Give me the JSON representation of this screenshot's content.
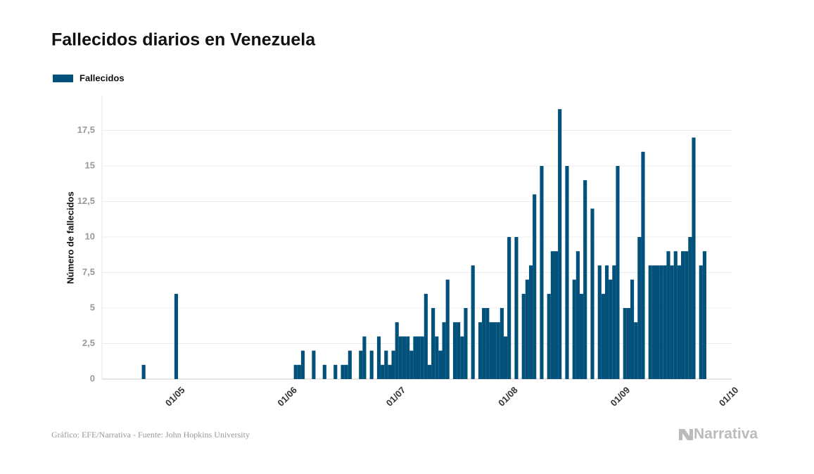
{
  "chart_data": {
    "type": "bar",
    "title": "Fallecidos diarios en Venezuela",
    "ylabel": "Número de fallecidos",
    "source": "Gráfico: EFE/Narrativa - Fuente: John Hopkins University",
    "brand": "Narrativa",
    "legend": "top-left",
    "grid": true,
    "series": [
      {
        "name": "Fallecidos",
        "color": "#02517a",
        "values": [
          0,
          0,
          0,
          0,
          0,
          0,
          0,
          0,
          0,
          0,
          0,
          1,
          0,
          0,
          0,
          0,
          0,
          0,
          0,
          0,
          6,
          0,
          0,
          0,
          0,
          0,
          0,
          0,
          0,
          0,
          0,
          0,
          0,
          0,
          0,
          0,
          0,
          0,
          0,
          0,
          0,
          0,
          0,
          0,
          0,
          0,
          0,
          0,
          0,
          0,
          0,
          0,
          0,
          1,
          1,
          2,
          0,
          0,
          2,
          0,
          0,
          1,
          0,
          0,
          1,
          0,
          1,
          1,
          2,
          0,
          0,
          2,
          3,
          0,
          2,
          0,
          3,
          1,
          2,
          1,
          2,
          4,
          3,
          3,
          3,
          2,
          3,
          3,
          3,
          6,
          1,
          5,
          3,
          2,
          4,
          7,
          0,
          4,
          4,
          3,
          5,
          0,
          8,
          0,
          4,
          5,
          5,
          4,
          4,
          4,
          5,
          3,
          10,
          0,
          10,
          0,
          6,
          7,
          8,
          13,
          0,
          15,
          0,
          6,
          9,
          9,
          19,
          0,
          15,
          0,
          7,
          9,
          6,
          14,
          0,
          12,
          0,
          8,
          6,
          8,
          7,
          8,
          15,
          0,
          5,
          5,
          7,
          4,
          10,
          16,
          0,
          8,
          8,
          8,
          8,
          8,
          9,
          8,
          9,
          8,
          9,
          9,
          10,
          17,
          0,
          8,
          9,
          null,
          null,
          null,
          null,
          null,
          null,
          null,
          null
        ]
      }
    ],
    "categories": [
      null,
      null,
      null,
      null,
      null,
      null,
      null,
      null,
      null,
      null,
      null,
      null,
      null,
      null,
      null,
      null,
      null,
      null,
      null,
      null,
      null,
      "01/05",
      null,
      null,
      null,
      null,
      null,
      null,
      null,
      null,
      null,
      null,
      null,
      null,
      null,
      null,
      null,
      null,
      null,
      null,
      null,
      null,
      null,
      null,
      null,
      null,
      null,
      null,
      null,
      null,
      null,
      null,
      "01/06",
      null,
      null,
      null,
      null,
      null,
      null,
      null,
      null,
      null,
      null,
      null,
      null,
      null,
      null,
      null,
      null,
      null,
      null,
      null,
      null,
      null,
      null,
      null,
      null,
      null,
      null,
      null,
      null,
      null,
      "01/07",
      null,
      null,
      null,
      null,
      null,
      null,
      null,
      null,
      null,
      null,
      null,
      null,
      null,
      null,
      null,
      null,
      null,
      null,
      null,
      null,
      null,
      null,
      null,
      null,
      null,
      null,
      null,
      null,
      null,
      null,
      "01/08",
      null,
      null,
      null,
      null,
      null,
      null,
      null,
      null,
      null,
      null,
      null,
      null,
      null,
      null,
      null,
      null,
      null,
      null,
      null,
      null,
      null,
      null,
      null,
      null,
      null,
      null,
      null,
      null,
      null,
      null,
      "01/09",
      null,
      null,
      null,
      null,
      null,
      null,
      null,
      null,
      null,
      null,
      null,
      null,
      null,
      null,
      null,
      null,
      null,
      null,
      null,
      null,
      null,
      null,
      null,
      null,
      null,
      null,
      null,
      null,
      null,
      "01/10"
    ],
    "ylim": [
      0,
      20
    ],
    "yticks": [
      0,
      {
        "value": 2.5,
        "label": "2,5"
      },
      5,
      {
        "value": 7.5,
        "label": "7,5"
      },
      10,
      {
        "value": 12.5,
        "label": "12,5"
      },
      15,
      {
        "value": 17.5,
        "label": "17,5"
      }
    ]
  }
}
